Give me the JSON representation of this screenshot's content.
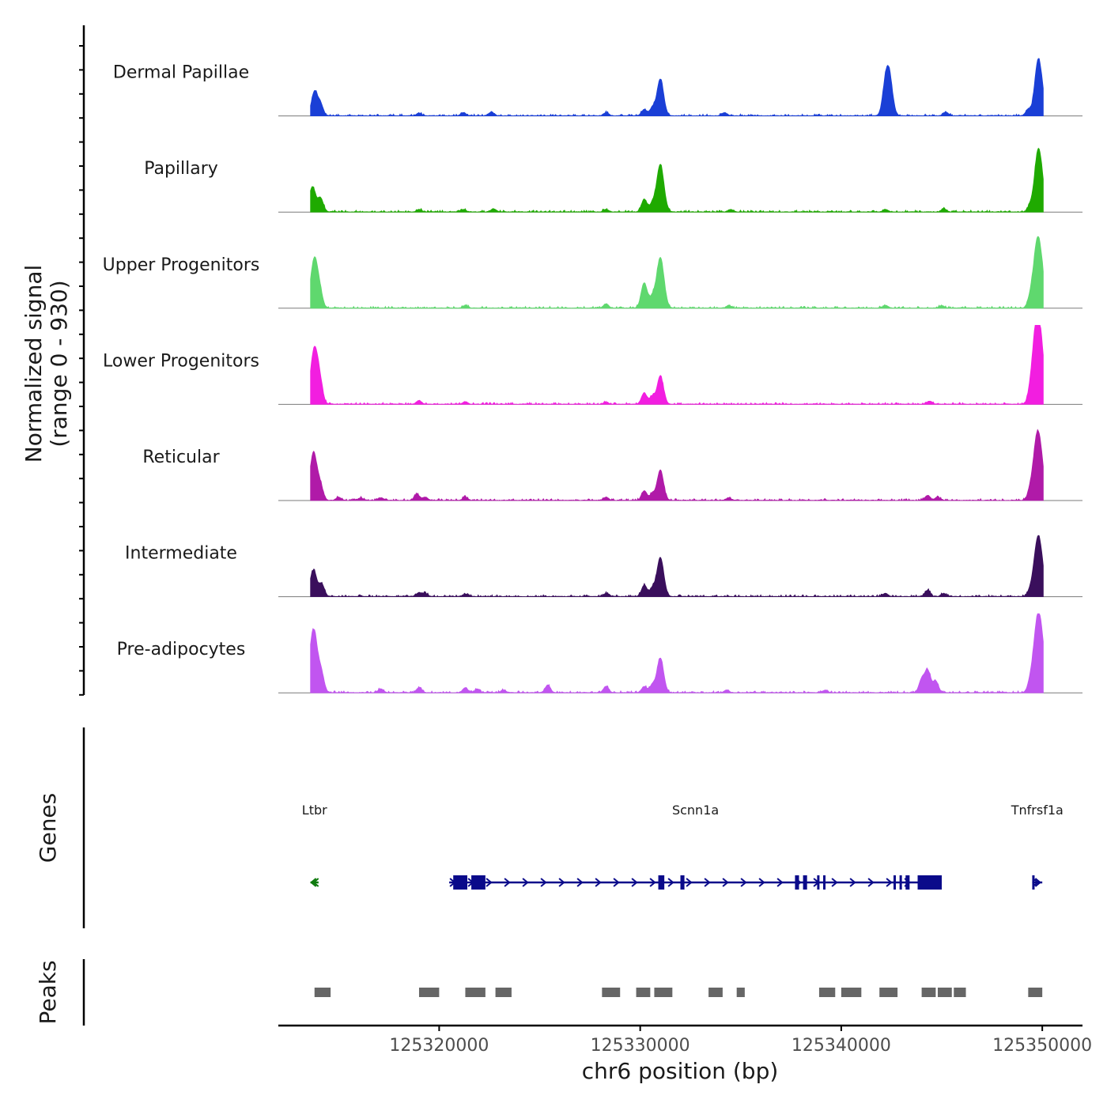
{
  "chart_data": {
    "type": "area",
    "description_axis": {
      "ylabel_line1": "Normalized signal",
      "ylabel_line2": "(range 0 - 930)",
      "y_range": [
        0,
        930
      ],
      "xlabel": "chr6 position (bp)",
      "x_range": [
        125312000,
        125352000
      ],
      "x_ticks": [
        125320000,
        125330000,
        125340000,
        125350000
      ],
      "x_tick_labels": [
        "125320000",
        "125330000",
        "125340000",
        "125350000"
      ]
    },
    "tracks": [
      {
        "name": "Dermal Papillae",
        "color": "#1a3fd6",
        "peaks": [
          [
            125313800,
            0.38
          ],
          [
            125314100,
            0.18
          ],
          [
            125319000,
            0.04
          ],
          [
            125321200,
            0.05
          ],
          [
            125322600,
            0.06
          ],
          [
            125328300,
            0.05
          ],
          [
            125330200,
            0.1
          ],
          [
            125330600,
            0.12
          ],
          [
            125331000,
            0.58
          ],
          [
            125334200,
            0.05
          ],
          [
            125342200,
            0.42
          ],
          [
            125342400,
            0.55
          ],
          [
            125345200,
            0.06
          ],
          [
            125349300,
            0.1
          ],
          [
            125349700,
            0.22
          ],
          [
            125349850,
            0.76
          ]
        ]
      },
      {
        "name": "Papillary",
        "color": "#1faa00",
        "peaks": [
          [
            125313700,
            0.4
          ],
          [
            125314100,
            0.22
          ],
          [
            125319000,
            0.04
          ],
          [
            125321200,
            0.04
          ],
          [
            125322700,
            0.05
          ],
          [
            125328300,
            0.04
          ],
          [
            125330200,
            0.2
          ],
          [
            125330600,
            0.12
          ],
          [
            125331000,
            0.75
          ],
          [
            125334500,
            0.04
          ],
          [
            125342200,
            0.04
          ],
          [
            125345100,
            0.05
          ],
          [
            125349400,
            0.1
          ],
          [
            125349700,
            0.2
          ],
          [
            125349850,
            0.88
          ]
        ]
      },
      {
        "name": "Upper Progenitors",
        "color": "#5fd86e",
        "peaks": [
          [
            125313800,
            0.8
          ],
          [
            125314100,
            0.15
          ],
          [
            125321300,
            0.04
          ],
          [
            125328300,
            0.07
          ],
          [
            125330200,
            0.4
          ],
          [
            125330600,
            0.15
          ],
          [
            125331000,
            0.8
          ],
          [
            125334400,
            0.04
          ],
          [
            125342200,
            0.04
          ],
          [
            125345000,
            0.04
          ],
          [
            125349400,
            0.15
          ],
          [
            125349650,
            0.35
          ],
          [
            125349850,
            0.95
          ]
        ]
      },
      {
        "name": "Lower Progenitors",
        "color": "#f21ee0",
        "peaks": [
          [
            125313800,
            0.9
          ],
          [
            125314100,
            0.2
          ],
          [
            125319000,
            0.06
          ],
          [
            125321300,
            0.04
          ],
          [
            125328300,
            0.03
          ],
          [
            125330200,
            0.18
          ],
          [
            125330600,
            0.12
          ],
          [
            125331000,
            0.45
          ],
          [
            125344400,
            0.05
          ],
          [
            125349400,
            0.15
          ],
          [
            125349650,
            0.55
          ],
          [
            125349850,
            1.15
          ]
        ]
      },
      {
        "name": "Reticular",
        "color": "#b01aa8",
        "peaks": [
          [
            125313750,
            0.75
          ],
          [
            125314100,
            0.2
          ],
          [
            125315000,
            0.05
          ],
          [
            125316100,
            0.04
          ],
          [
            125317100,
            0.04
          ],
          [
            125318900,
            0.1
          ],
          [
            125319300,
            0.05
          ],
          [
            125321300,
            0.05
          ],
          [
            125328300,
            0.05
          ],
          [
            125330200,
            0.15
          ],
          [
            125330600,
            0.1
          ],
          [
            125331000,
            0.48
          ],
          [
            125334400,
            0.04
          ],
          [
            125344300,
            0.08
          ],
          [
            125344800,
            0.05
          ],
          [
            125349400,
            0.15
          ],
          [
            125349650,
            0.38
          ],
          [
            125349850,
            0.9
          ]
        ]
      },
      {
        "name": "Intermediate",
        "color": "#3a0f5c",
        "peaks": [
          [
            125313750,
            0.42
          ],
          [
            125314150,
            0.2
          ],
          [
            125319000,
            0.06
          ],
          [
            125319300,
            0.05
          ],
          [
            125321300,
            0.04
          ],
          [
            125328300,
            0.05
          ],
          [
            125330200,
            0.18
          ],
          [
            125330600,
            0.12
          ],
          [
            125331000,
            0.62
          ],
          [
            125342200,
            0.05
          ],
          [
            125344300,
            0.1
          ],
          [
            125345100,
            0.05
          ],
          [
            125349400,
            0.1
          ],
          [
            125349650,
            0.25
          ],
          [
            125349850,
            0.85
          ]
        ]
      },
      {
        "name": "Pre-adipocytes",
        "color": "#c155f0",
        "peaks": [
          [
            125313750,
            1.0
          ],
          [
            125314150,
            0.25
          ],
          [
            125317100,
            0.06
          ],
          [
            125319000,
            0.08
          ],
          [
            125321300,
            0.08
          ],
          [
            125321900,
            0.06
          ],
          [
            125323200,
            0.04
          ],
          [
            125325400,
            0.12
          ],
          [
            125328300,
            0.1
          ],
          [
            125330200,
            0.1
          ],
          [
            125330600,
            0.12
          ],
          [
            125331000,
            0.55
          ],
          [
            125334300,
            0.04
          ],
          [
            125339200,
            0.04
          ],
          [
            125344000,
            0.2
          ],
          [
            125344300,
            0.35
          ],
          [
            125344700,
            0.18
          ],
          [
            125349400,
            0.15
          ],
          [
            125349650,
            0.2
          ],
          [
            125349850,
            1.2
          ]
        ]
      }
    ],
    "genes_track": {
      "label": "Genes",
      "genes": [
        {
          "name": "Ltbr",
          "start": 125313600,
          "end": 125314000,
          "strand": "-",
          "color": "#0e7a0d",
          "exons": []
        },
        {
          "name": "Scnn1a",
          "start": 125320500,
          "end": 125345000,
          "strand": "+",
          "color": "#0a0a8a",
          "exons": [
            [
              125320700,
              125321400
            ],
            [
              125321600,
              125322300
            ],
            [
              125330900,
              125331200
            ],
            [
              125332000,
              125332200
            ],
            [
              125337700,
              125337900
            ],
            [
              125338100,
              125338300
            ],
            [
              125338800,
              125338900
            ],
            [
              125339100,
              125339200
            ],
            [
              125342600,
              125342700
            ],
            [
              125342900,
              125343000
            ],
            [
              125343200,
              125343400
            ],
            [
              125343800,
              125345000
            ]
          ]
        },
        {
          "name": "Tnfrsf1a",
          "start": 125349500,
          "end": 125350000,
          "strand": "+",
          "color": "#0a0a8a",
          "exons": [
            [
              125349500,
              125349600
            ]
          ]
        }
      ]
    },
    "peaks_track": {
      "label": "Peaks",
      "color": "#666666",
      "regions": [
        [
          125313800,
          125314600
        ],
        [
          125319000,
          125320000
        ],
        [
          125321300,
          125322300
        ],
        [
          125322800,
          125323600
        ],
        [
          125328100,
          125329000
        ],
        [
          125329800,
          125330500
        ],
        [
          125330700,
          125331600
        ],
        [
          125333400,
          125334100
        ],
        [
          125334800,
          125335200
        ],
        [
          125338900,
          125339700
        ],
        [
          125340000,
          125341000
        ],
        [
          125341900,
          125342800
        ],
        [
          125344000,
          125344700
        ],
        [
          125344800,
          125345500
        ],
        [
          125345600,
          125346200
        ],
        [
          125349300,
          125350000
        ]
      ]
    }
  }
}
